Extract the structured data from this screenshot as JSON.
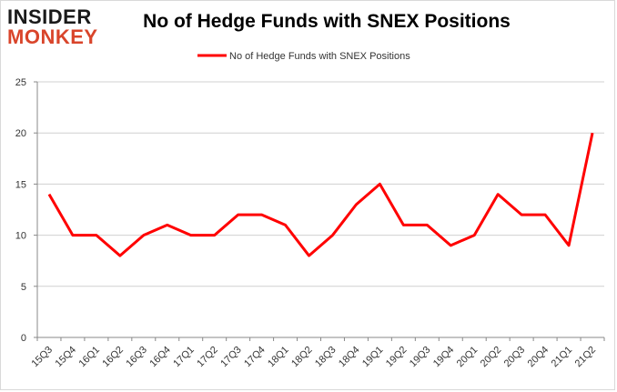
{
  "logo": {
    "line1": "INSIDER",
    "line2": "MONKEY"
  },
  "chart_data": {
    "type": "line",
    "title": "No of Hedge Funds with SNEX Positions",
    "xlabel": "",
    "ylabel": "",
    "categories": [
      "15Q3",
      "15Q4",
      "16Q1",
      "16Q2",
      "16Q3",
      "16Q4",
      "17Q1",
      "17Q2",
      "17Q3",
      "17Q4",
      "18Q1",
      "18Q2",
      "18Q3",
      "18Q4",
      "19Q1",
      "19Q2",
      "19Q3",
      "19Q4",
      "20Q1",
      "20Q2",
      "20Q3",
      "20Q4",
      "21Q1",
      "21Q2"
    ],
    "series": [
      {
        "name": "No of Hedge Funds with SNEX Positions",
        "values": [
          14,
          10,
          10,
          8,
          10,
          11,
          10,
          10,
          12,
          12,
          11,
          8,
          10,
          13,
          15,
          11,
          11,
          9,
          10,
          14,
          12,
          12,
          9,
          20
        ],
        "color": "#ff0000"
      }
    ],
    "ylim": [
      0,
      25
    ],
    "yticks": [
      0,
      5,
      10,
      15,
      20,
      25
    ],
    "grid": true,
    "legend": "top-center"
  }
}
